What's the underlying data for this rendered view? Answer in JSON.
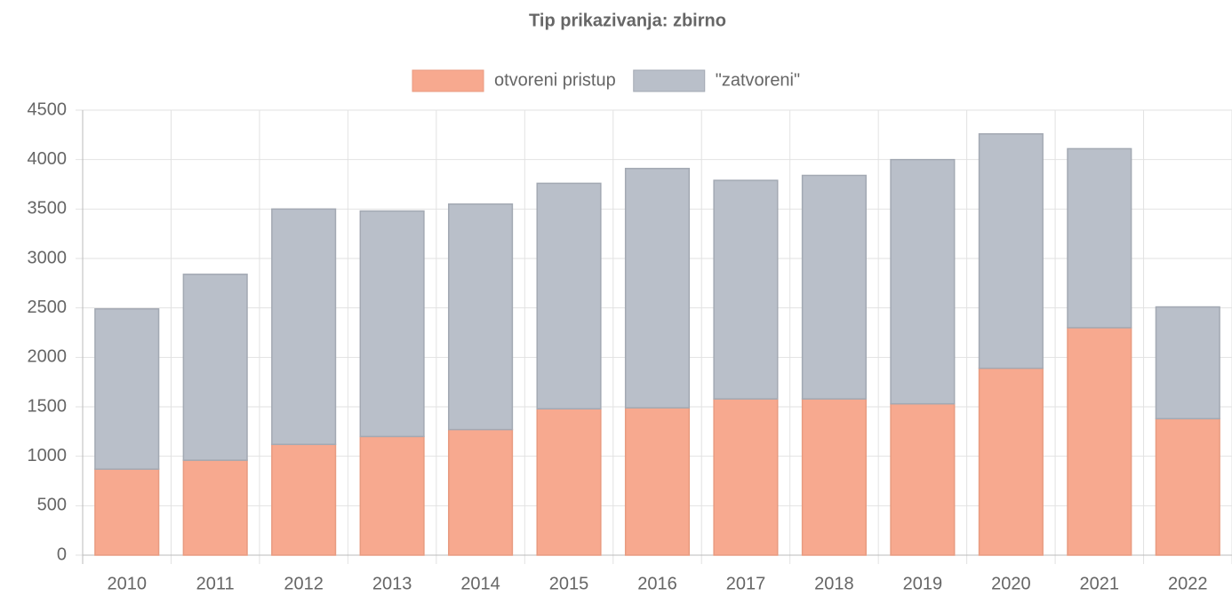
{
  "chart_data": {
    "type": "stacked_bar",
    "title": "Tip prikazivanja: zbirno",
    "categories": [
      "2010",
      "2011",
      "2012",
      "2013",
      "2014",
      "2015",
      "2016",
      "2017",
      "2018",
      "2019",
      "2020",
      "2021",
      "2022"
    ],
    "series": [
      {
        "name": "otvoreni pristup",
        "color": "#f7a98f",
        "values": [
          870,
          960,
          1120,
          1200,
          1270,
          1480,
          1490,
          1580,
          1580,
          1530,
          1890,
          2300,
          1380
        ]
      },
      {
        "name": "\"zatvoreni\"",
        "color": "#b9bfc9",
        "values": [
          1620,
          1880,
          2380,
          2280,
          2280,
          2280,
          2420,
          2210,
          2260,
          2470,
          2370,
          1810,
          1130
        ]
      }
    ],
    "ylim": [
      0,
      4500
    ],
    "yticks": [
      0,
      500,
      1000,
      1500,
      2000,
      2500,
      3000,
      3500,
      4000,
      4500
    ],
    "grid": true,
    "legend": "top"
  }
}
